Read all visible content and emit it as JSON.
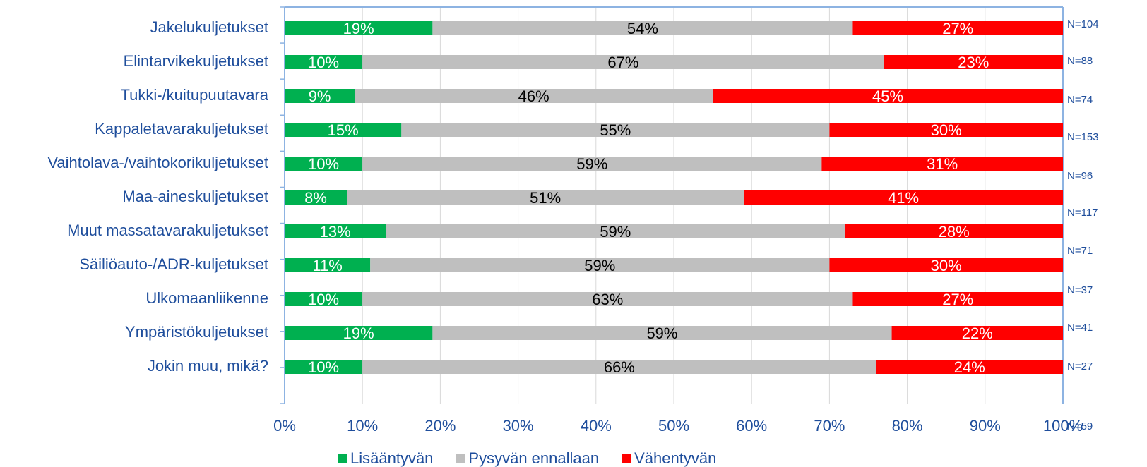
{
  "chart_data": {
    "type": "stacked-bar-horizontal",
    "categories": [
      "Jakelukuljetukset",
      "Elintarvikekuljetukset",
      "Tukki-/kuitupuutavara",
      "Kappaletavarakuljetukset",
      "Vaihtolava-/vaihtokorikuljetukset",
      "Maa-aineskuljetukset",
      "Muut massatavarakuljetukset",
      "Säiliöauto-/ADR-kuljetukset",
      "Ulkomaanliikenne",
      "Ympäristökuljetukset",
      "Jokin muu, mikä?"
    ],
    "series": [
      {
        "name": "Lisääntyvän",
        "color": "#00b050",
        "values": [
          19,
          10,
          9,
          15,
          10,
          8,
          13,
          11,
          10,
          19,
          10
        ],
        "value_labels": [
          "19%",
          "10%",
          "9%",
          "15%",
          "10%",
          "8%",
          "13%",
          "11%",
          "10%",
          "19%",
          "10%"
        ]
      },
      {
        "name": "Pysyvän ennallaan",
        "color": "#bfbfbf",
        "values": [
          54,
          67,
          46,
          55,
          59,
          51,
          59,
          59,
          63,
          59,
          66
        ],
        "value_labels": [
          "54%",
          "67%",
          "46%",
          "55%",
          "59%",
          "51%",
          "59%",
          "59%",
          "63%",
          "59%",
          "66%"
        ]
      },
      {
        "name": "Vähentyvän",
        "color": "#ff0000",
        "values": [
          27,
          23,
          45,
          30,
          31,
          41,
          28,
          30,
          27,
          22,
          24
        ],
        "value_labels": [
          "27%",
          "23%",
          "45%",
          "30%",
          "31%",
          "41%",
          "28%",
          "30%",
          "27%",
          "22%",
          "24%"
        ]
      }
    ],
    "xlim": [
      0,
      100
    ],
    "xticks": [
      {
        "value": 0,
        "label": "0%"
      },
      {
        "value": 10,
        "label": "10%"
      },
      {
        "value": 20,
        "label": "20%"
      },
      {
        "value": 30,
        "label": "30%"
      },
      {
        "value": 40,
        "label": "40%"
      },
      {
        "value": 50,
        "label": "50%"
      },
      {
        "value": 60,
        "label": "60%"
      },
      {
        "value": 70,
        "label": "70%"
      },
      {
        "value": 80,
        "label": "80%"
      },
      {
        "value": 90,
        "label": "90%"
      },
      {
        "value": 100,
        "label": "100%"
      }
    ],
    "grid": true,
    "legend": "bottom",
    "annotations": [
      "N=104",
      "N=88",
      "N=74",
      "N=153",
      "N=96",
      "N=117",
      "N=71",
      "N=37",
      "N=41",
      "N=27",
      "N=59"
    ]
  }
}
